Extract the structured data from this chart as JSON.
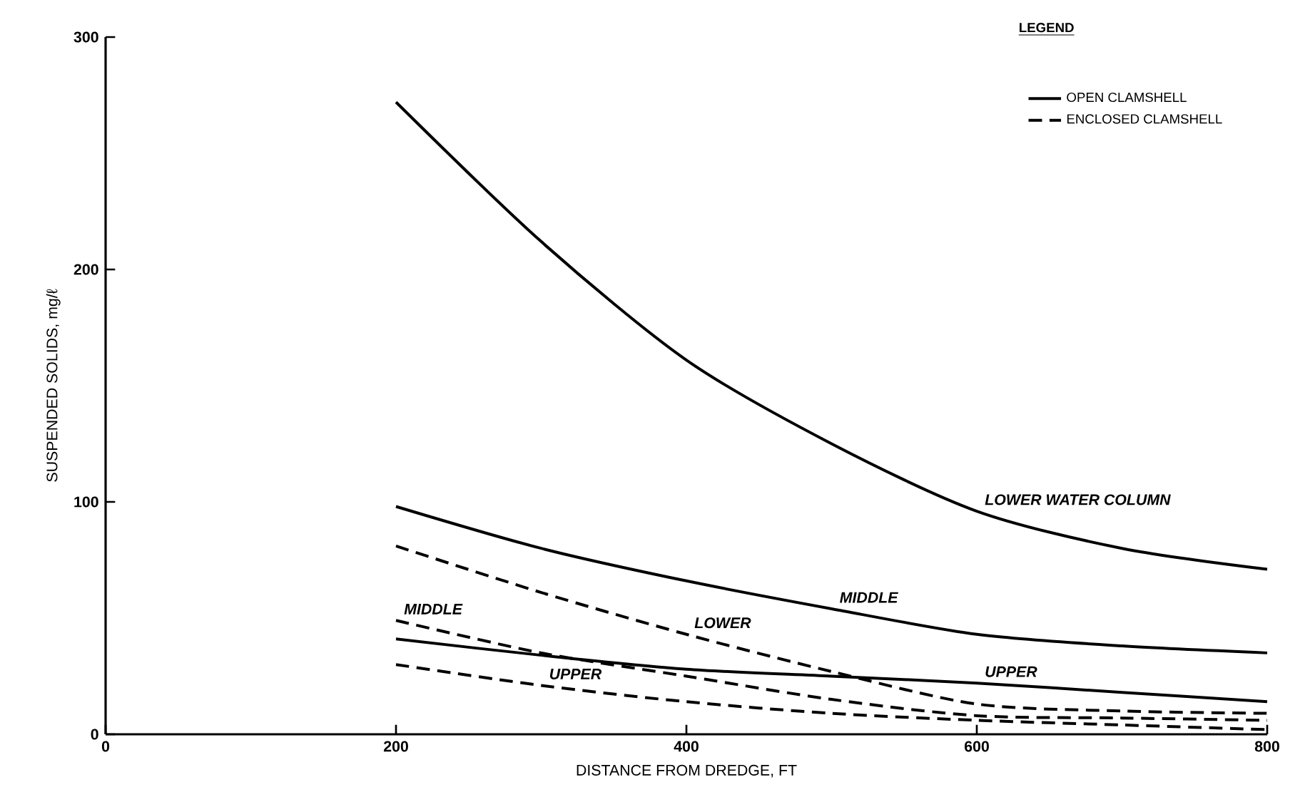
{
  "chart_data": {
    "type": "line",
    "xlabel": "DISTANCE FROM DREDGE, FT",
    "ylabel": "SUSPENDED SOLIDS, mg/ℓ",
    "legend_title": "LEGEND",
    "xlim": [
      0,
      800
    ],
    "ylim": [
      0,
      300
    ],
    "xticks": [
      0,
      200,
      400,
      600,
      800
    ],
    "yticks": [
      0,
      100,
      200,
      300
    ],
    "x": [
      200,
      300,
      400,
      500,
      600,
      700,
      800
    ],
    "series": [
      {
        "name": "OPEN CLAMSHELL",
        "color": "#000000",
        "line_style": "solid",
        "values": [
          272,
          212,
          161,
          125,
          96,
          80,
          71
        ]
      },
      {
        "color": "#000000",
        "line_style": "solid",
        "values": [
          98,
          80,
          66,
          54,
          43,
          38,
          35
        ]
      },
      {
        "color": "#000000",
        "line_style": "solid",
        "values": [
          41,
          34,
          28,
          25,
          22,
          18,
          14
        ]
      },
      {
        "name": "ENCLOSED CLAMSHELL",
        "color": "#000000",
        "line_style": "dashed",
        "values": [
          81,
          61,
          43,
          27,
          13,
          10,
          9
        ]
      },
      {
        "color": "#000000",
        "line_style": "dashed",
        "values": [
          49,
          35,
          25,
          15,
          8,
          7,
          6
        ]
      },
      {
        "color": "#000000",
        "line_style": "dashed",
        "values": [
          30,
          21,
          14,
          9,
          6,
          4,
          2
        ]
      }
    ],
    "annotations": [
      {
        "text": "LOWER WATER COLUMN",
        "x": 600,
        "y": 96
      },
      {
        "text": "MIDDLE",
        "x": 500,
        "y": 54
      },
      {
        "text": "UPPER",
        "x": 600,
        "y": 22
      },
      {
        "text": "MIDDLE",
        "x": 200,
        "y": 49
      },
      {
        "text": "LOWER",
        "x": 400,
        "y": 43
      },
      {
        "text": "UPPER",
        "x": 300,
        "y": 21
      }
    ],
    "legend": "top right",
    "grid": false,
    "marker": "none"
  }
}
